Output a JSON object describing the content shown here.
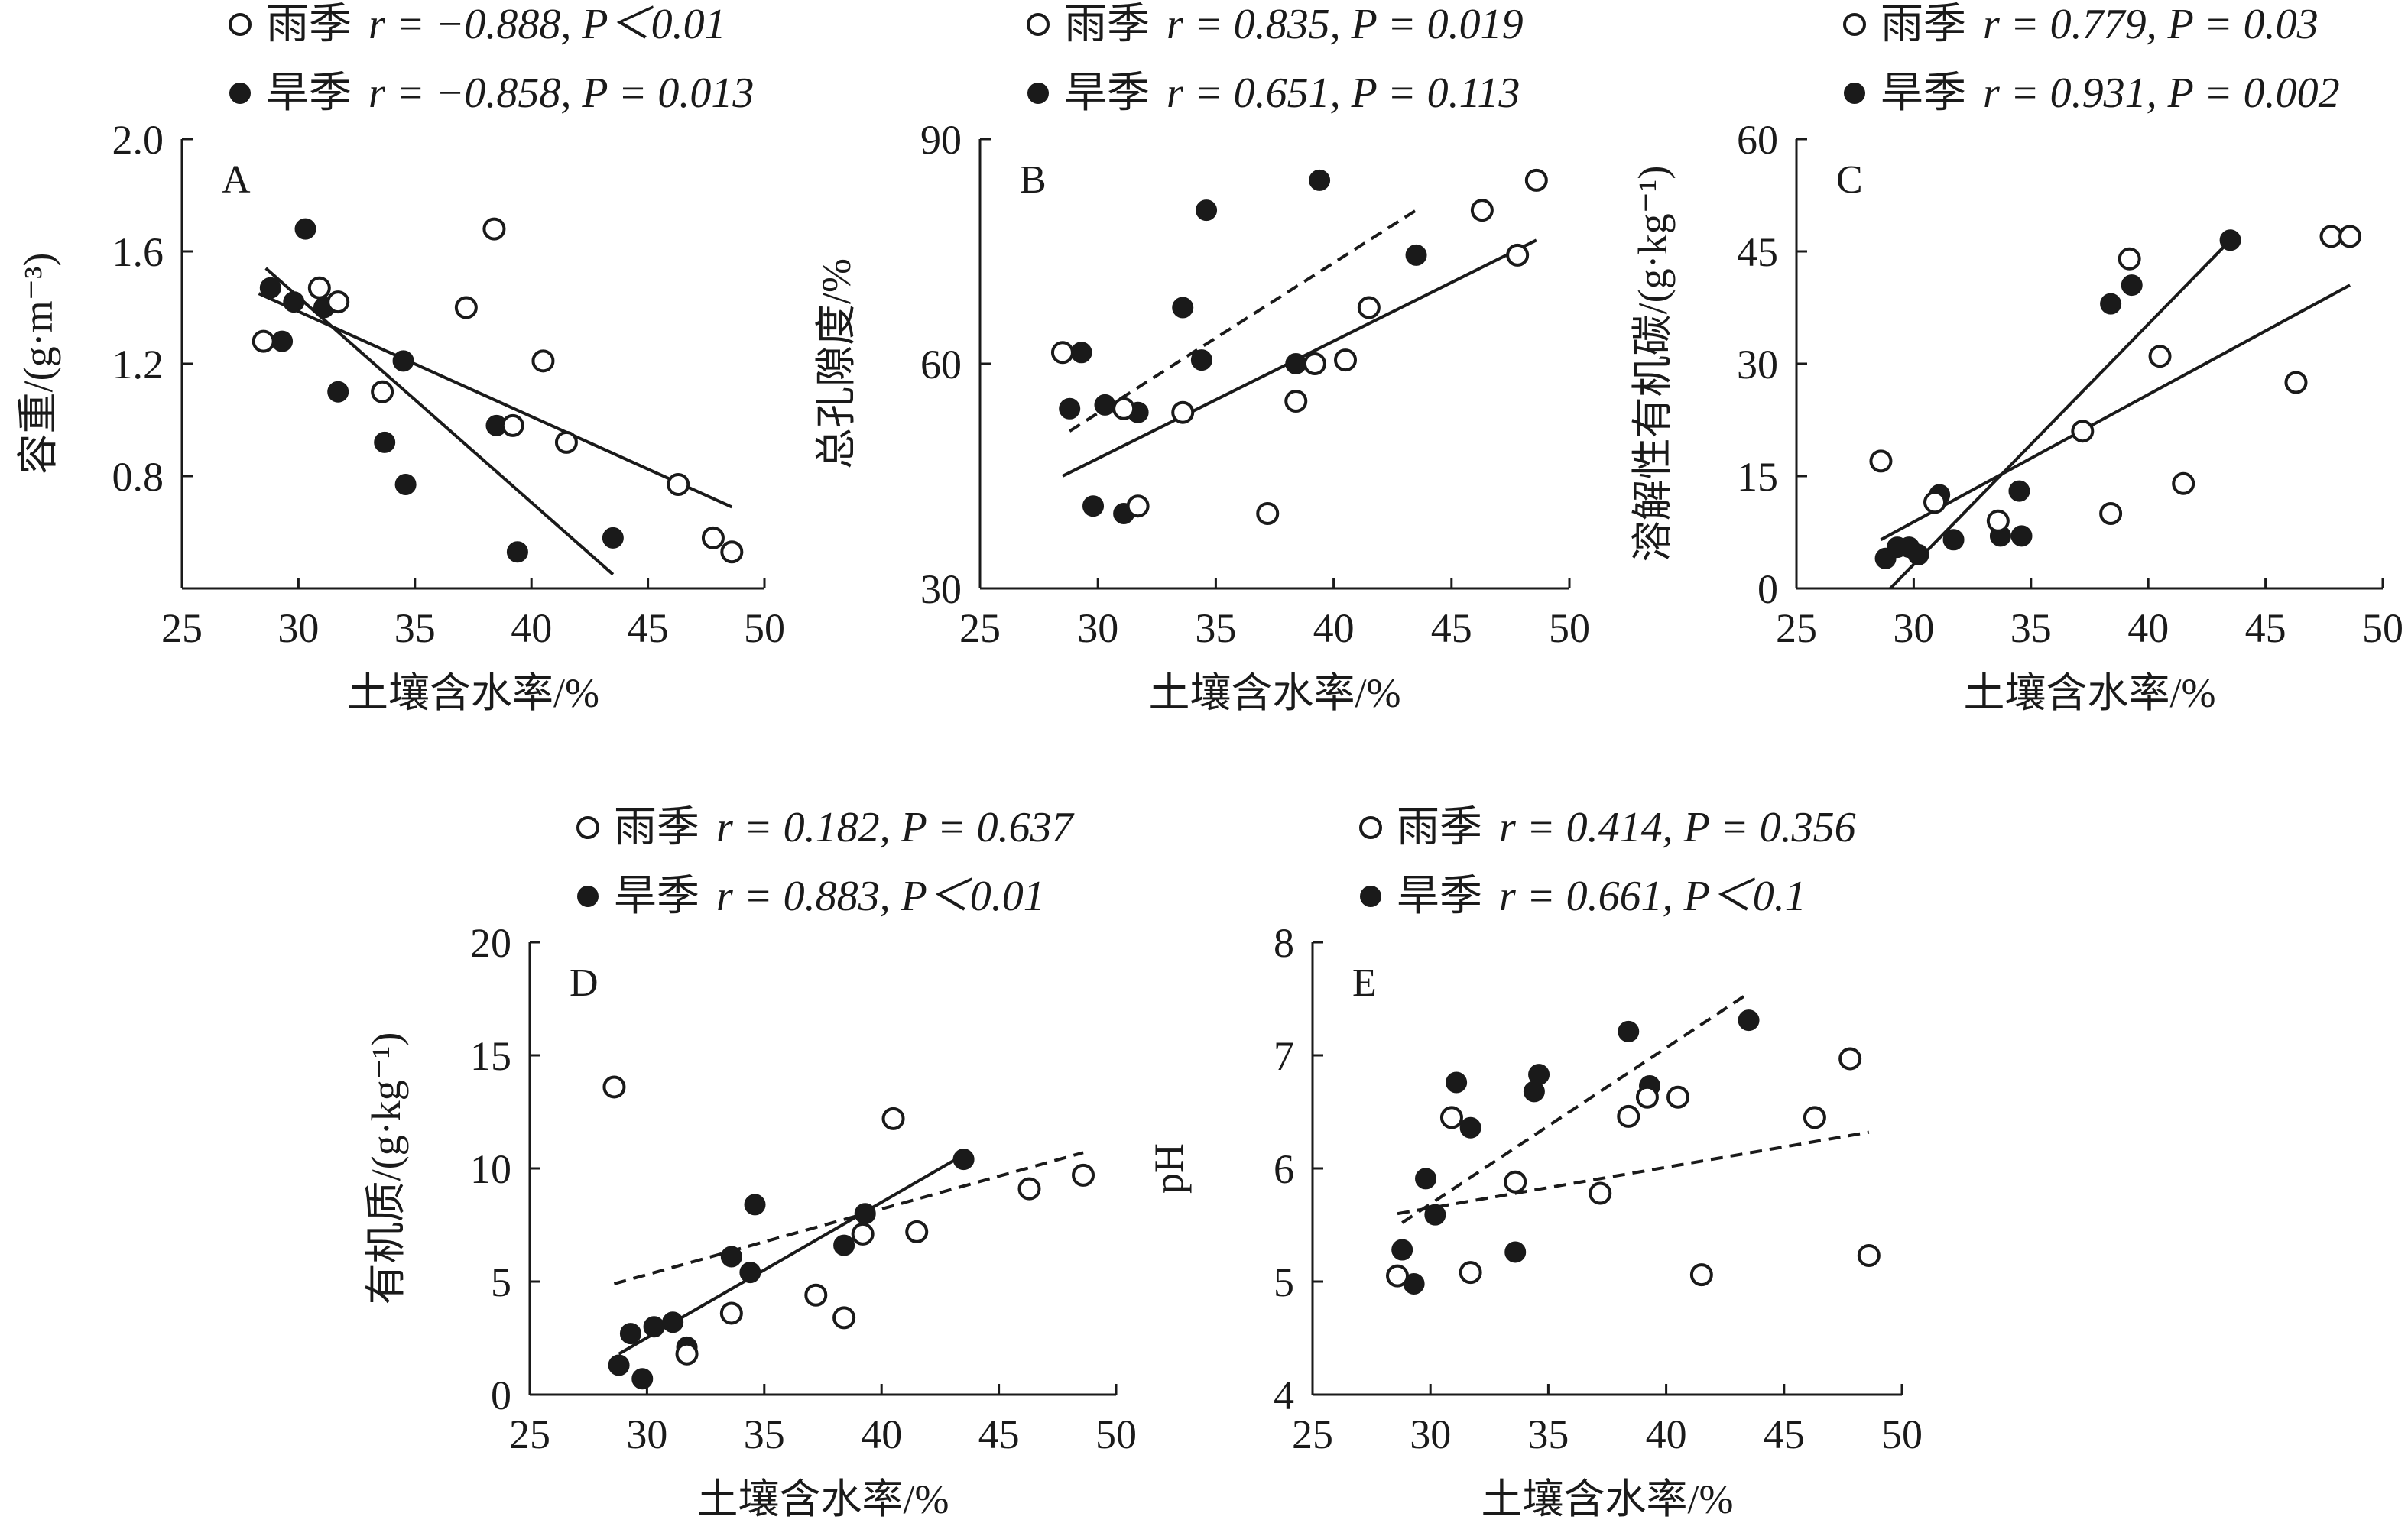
{
  "chart_data": [
    {
      "panel": "A",
      "type": "scatter",
      "xlabel": "土壤含水率/%",
      "ylabel": "容重/(g·m⁻³)",
      "xlim": [
        25,
        50
      ],
      "ylim": [
        0.4,
        2.0
      ],
      "xticks": [
        "25",
        "30",
        "35",
        "40",
        "45",
        "50"
      ],
      "yticks": [
        "0.8",
        "1.2",
        "1.6",
        "2.0"
      ],
      "ytick_values": [
        0.8,
        1.2,
        1.6,
        2.0
      ],
      "series": [
        {
          "name": "雨季",
          "stat": "r = −0.888, P＜0.01",
          "marker": "open",
          "x": [
            28.5,
            30.9,
            31.7,
            33.6,
            37.2,
            38.4,
            39.2,
            40.5,
            41.5,
            46.3,
            47.8,
            48.6
          ],
          "y": [
            1.28,
            1.47,
            1.42,
            1.1,
            1.4,
            1.68,
            0.98,
            1.21,
            0.92,
            0.77,
            0.58,
            0.53
          ],
          "fit": {
            "style": "solid",
            "x": [
              28.3,
              48.6
            ],
            "y": [
              1.45,
              0.69
            ]
          }
        },
        {
          "name": "旱季",
          "stat": "r = −0.858, P = 0.013",
          "marker": "filled",
          "x": [
            28.8,
            29.3,
            29.8,
            30.3,
            31.1,
            31.7,
            33.7,
            34.5,
            34.6,
            38.5,
            39.4,
            43.5
          ],
          "y": [
            1.47,
            1.28,
            1.42,
            1.68,
            1.4,
            1.1,
            0.92,
            1.21,
            0.77,
            0.98,
            0.53,
            0.58
          ],
          "fit": {
            "style": "solid",
            "x": [
              28.6,
              43.5
            ],
            "y": [
              1.54,
              0.45
            ]
          }
        }
      ]
    },
    {
      "panel": "B",
      "type": "scatter",
      "xlabel": "土壤含水率/%",
      "ylabel": "总孔隙度/%",
      "xlim": [
        25,
        50
      ],
      "ylim": [
        30,
        90
      ],
      "xticks": [
        "25",
        "30",
        "35",
        "40",
        "45",
        "50"
      ],
      "yticks": [
        "30",
        "60",
        "90"
      ],
      "ytick_values": [
        30,
        60,
        90
      ],
      "series": [
        {
          "name": "雨季",
          "stat": "r = 0.835, P = 0.019",
          "marker": "open",
          "x": [
            28.5,
            31.1,
            31.7,
            33.6,
            37.2,
            38.4,
            39.2,
            40.5,
            41.5,
            46.3,
            47.8,
            48.6
          ],
          "y": [
            61.5,
            54.0,
            41.0,
            53.5,
            40.0,
            55.0,
            60.0,
            60.5,
            67.5,
            80.5,
            74.5,
            84.5
          ],
          "fit": {
            "style": "solid",
            "x": [
              28.5,
              48.6
            ],
            "y": [
              45.0,
              76.5
            ]
          }
        },
        {
          "name": "旱季",
          "stat": "r = 0.651, P = 0.113",
          "marker": "filled",
          "x": [
            28.8,
            29.3,
            29.8,
            30.3,
            31.1,
            31.7,
            33.6,
            34.4,
            34.6,
            38.4,
            39.4,
            43.5
          ],
          "y": [
            54.0,
            61.5,
            41.0,
            54.5,
            40.0,
            53.5,
            67.5,
            60.5,
            80.5,
            60.0,
            84.5,
            74.5
          ],
          "fit": {
            "style": "dashed",
            "x": [
              28.8,
              43.5
            ],
            "y": [
              51.0,
              80.5
            ]
          }
        }
      ]
    },
    {
      "panel": "C",
      "type": "scatter",
      "xlabel": "土壤含水率/%",
      "ylabel": "溶解性有机碳/(g·kg⁻¹)",
      "xlim": [
        25,
        50
      ],
      "ylim": [
        0,
        60
      ],
      "xticks": [
        "25",
        "30",
        "35",
        "40",
        "45",
        "50"
      ],
      "yticks": [
        "0",
        "15",
        "30",
        "45",
        "60"
      ],
      "ytick_values": [
        0,
        15,
        30,
        45,
        60
      ],
      "series": [
        {
          "name": "雨季",
          "stat": "r = 0.779, P = 0.03",
          "marker": "open",
          "x": [
            28.6,
            30.9,
            33.6,
            37.2,
            38.4,
            39.2,
            40.5,
            41.5,
            46.3,
            47.8,
            48.6
          ],
          "y": [
            17.0,
            11.5,
            9.0,
            21.0,
            10.0,
            44.0,
            31.0,
            14.0,
            27.5,
            47.0,
            47.0
          ],
          "fit": {
            "style": "solid",
            "x": [
              28.6,
              48.6
            ],
            "y": [
              6.5,
              40.5
            ]
          }
        },
        {
          "name": "旱季",
          "stat": "r = 0.931, P = 0.002",
          "marker": "filled",
          "x": [
            28.8,
            29.3,
            29.8,
            30.2,
            31.1,
            31.7,
            33.7,
            34.5,
            34.6,
            38.4,
            39.3,
            43.5
          ],
          "y": [
            4.0,
            5.5,
            5.5,
            4.5,
            12.5,
            6.5,
            7.0,
            13.0,
            7.0,
            38.0,
            40.5,
            46.5
          ],
          "fit": {
            "style": "solid",
            "x": [
              29.0,
              43.5
            ],
            "y": [
              0.0,
              46.5
            ]
          }
        }
      ]
    },
    {
      "panel": "D",
      "type": "scatter",
      "xlabel": "土壤含水率/%",
      "ylabel": "有机质/(g·kg⁻¹)",
      "xlim": [
        25,
        50
      ],
      "ylim": [
        0,
        20
      ],
      "xticks": [
        "25",
        "30",
        "35",
        "40",
        "45",
        "50"
      ],
      "yticks": [
        "0",
        "5",
        "10",
        "15",
        "20"
      ],
      "ytick_values": [
        0,
        5,
        10,
        15,
        20
      ],
      "series": [
        {
          "name": "雨季",
          "stat": "r = 0.182, P = 0.637",
          "marker": "open",
          "x": [
            28.6,
            31.7,
            33.6,
            37.2,
            38.4,
            39.2,
            40.5,
            41.5,
            46.3,
            48.6
          ],
          "y": [
            13.6,
            1.8,
            3.6,
            4.4,
            3.4,
            7.1,
            12.2,
            7.2,
            9.1,
            9.7
          ],
          "fit": {
            "style": "dashed",
            "x": [
              28.6,
              48.6
            ],
            "y": [
              4.9,
              10.7
            ]
          }
        },
        {
          "name": "旱季",
          "stat": "r = 0.883, P＜0.01",
          "marker": "filled",
          "x": [
            28.8,
            29.3,
            29.8,
            30.3,
            31.1,
            31.7,
            33.6,
            34.4,
            34.6,
            38.4,
            39.3,
            43.5
          ],
          "y": [
            1.3,
            2.7,
            0.7,
            3.0,
            3.2,
            2.1,
            6.1,
            5.4,
            8.4,
            6.6,
            8.0,
            10.4
          ],
          "fit": {
            "style": "solid",
            "x": [
              28.8,
              43.5
            ],
            "y": [
              1.8,
              10.6
            ]
          }
        }
      ]
    },
    {
      "panel": "E",
      "type": "scatter",
      "xlabel": "土壤含水率/%",
      "ylabel": "pH",
      "xlim": [
        25,
        50
      ],
      "ylim": [
        4,
        8
      ],
      "xticks": [
        "25",
        "30",
        "35",
        "40",
        "45",
        "50"
      ],
      "yticks": [
        "4",
        "5",
        "6",
        "7",
        "8"
      ],
      "ytick_values": [
        4,
        5,
        6,
        7,
        8
      ],
      "series": [
        {
          "name": "雨季",
          "stat": "r = 0.414, P = 0.356",
          "marker": "open",
          "x": [
            28.6,
            30.9,
            31.7,
            33.6,
            37.2,
            38.4,
            39.2,
            40.5,
            41.5,
            46.3,
            47.8,
            48.6
          ],
          "y": [
            5.05,
            6.45,
            5.08,
            5.88,
            5.78,
            6.46,
            6.63,
            6.63,
            5.06,
            6.45,
            6.97,
            5.23
          ],
          "fit": {
            "style": "dashed",
            "x": [
              28.6,
              48.6
            ],
            "y": [
              5.6,
              6.32
            ]
          }
        },
        {
          "name": "旱季",
          "stat": "r = 0.661, P＜0.1",
          "marker": "filled",
          "x": [
            28.8,
            29.3,
            29.8,
            30.2,
            31.1,
            31.7,
            33.6,
            34.4,
            34.6,
            38.4,
            39.3,
            43.5
          ],
          "y": [
            5.28,
            4.98,
            5.91,
            5.59,
            6.76,
            6.36,
            5.26,
            6.68,
            6.83,
            7.21,
            6.73,
            7.31
          ],
          "fit": {
            "style": "dashed",
            "x": [
              28.8,
              43.5
            ],
            "y": [
              5.52,
              7.55
            ]
          }
        }
      ]
    }
  ]
}
